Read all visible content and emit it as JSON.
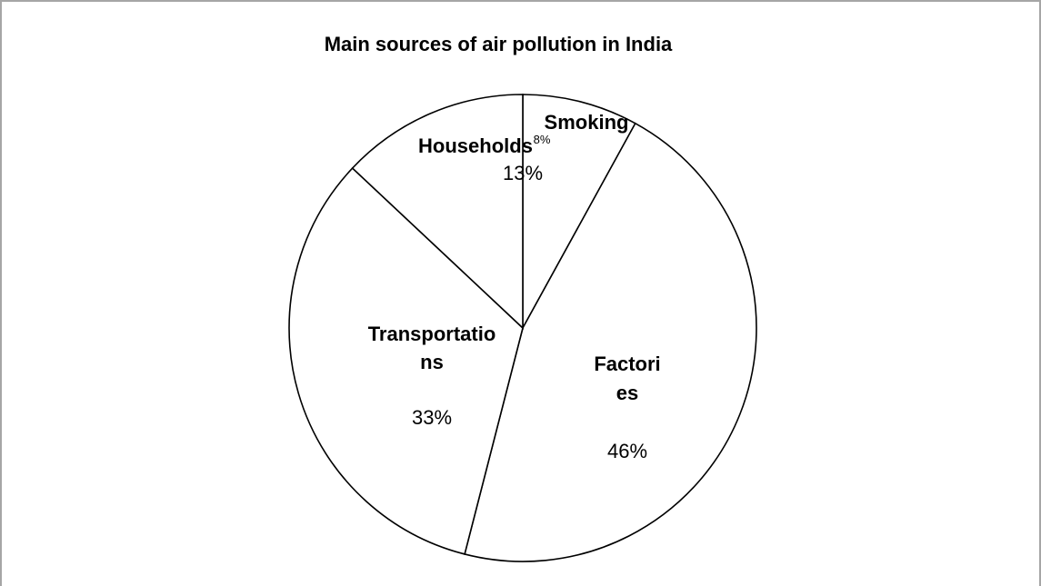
{
  "chart_data": {
    "type": "pie",
    "title": "Main sources of air pollution in India",
    "categories": [
      "Smoking",
      "Factories",
      "Transportations",
      "Households"
    ],
    "values": [
      8,
      46,
      33,
      13
    ],
    "labels": [
      {
        "name_lines": [
          "Smoking"
        ],
        "pct": "8%"
      },
      {
        "name_lines": [
          "Factori",
          "es"
        ],
        "pct": "46%"
      },
      {
        "name_lines": [
          "Transportatio",
          "ns"
        ],
        "pct": "33%"
      },
      {
        "name_lines": [
          "Households"
        ],
        "pct": "13%"
      }
    ],
    "legend": "none",
    "colors": {
      "fill": "#ffffff",
      "stroke": "#000000",
      "frame": "#a6a6a6"
    }
  }
}
